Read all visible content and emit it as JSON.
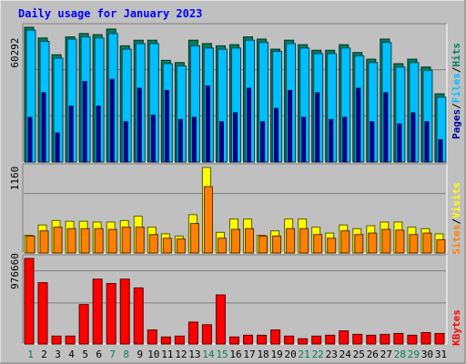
{
  "chart_data": [
    {
      "type": "bar",
      "panel": "hits-files-pages",
      "title": "Daily usage for January 2023",
      "ylabel_max": "60292",
      "ymax": 60292,
      "categories": [
        "1",
        "2",
        "3",
        "4",
        "5",
        "6",
        "7",
        "8",
        "9",
        "10",
        "11",
        "12",
        "13",
        "14",
        "15",
        "16",
        "17",
        "18",
        "19",
        "20",
        "21",
        "22",
        "23",
        "24",
        "25",
        "26",
        "27",
        "28",
        "29",
        "30",
        "31"
      ],
      "weekend_days": [
        "1",
        "7",
        "8",
        "14",
        "15",
        "21",
        "22",
        "28",
        "29"
      ],
      "side_label": [
        "Pages",
        "/",
        "Files",
        "/",
        "Hits"
      ],
      "series": [
        {
          "name": "Hits",
          "color": "#00805c",
          "values": [
            60292,
            55500,
            48000,
            56000,
            57500,
            57000,
            59500,
            52000,
            54500,
            54500,
            45500,
            44500,
            54500,
            53000,
            52000,
            52500,
            56000,
            55000,
            50500,
            54500,
            52500,
            50000,
            50000,
            52500,
            49000,
            46000,
            55000,
            44000,
            46000,
            42500,
            30500
          ]
        },
        {
          "name": "Files",
          "color": "#00bfff",
          "values": [
            59000,
            54000,
            46500,
            55000,
            56000,
            55500,
            57500,
            50500,
            53000,
            53000,
            44000,
            43000,
            52000,
            51000,
            50500,
            51000,
            54500,
            53500,
            49500,
            53000,
            51000,
            48500,
            48500,
            51000,
            47500,
            44500,
            53500,
            42500,
            44500,
            41000,
            29000
          ]
        },
        {
          "name": "Pages",
          "color": "#0000a0",
          "values": [
            20000,
            31000,
            13000,
            25000,
            36000,
            25000,
            37000,
            18000,
            33000,
            21000,
            32000,
            19000,
            20000,
            34000,
            18000,
            22000,
            33000,
            18000,
            24000,
            32000,
            20000,
            31000,
            19000,
            20000,
            33000,
            18000,
            31000,
            17000,
            22000,
            18000,
            10000
          ]
        }
      ]
    },
    {
      "type": "bar",
      "panel": "visits-sites",
      "ylabel_max": "1160",
      "ymax": 1160,
      "categories": [
        "1",
        "2",
        "3",
        "4",
        "5",
        "6",
        "7",
        "8",
        "9",
        "10",
        "11",
        "12",
        "13",
        "14",
        "15",
        "16",
        "17",
        "18",
        "19",
        "20",
        "21",
        "22",
        "23",
        "24",
        "25",
        "26",
        "27",
        "28",
        "29",
        "30",
        "31"
      ],
      "side_label": [
        "Sites",
        "/",
        "Visits"
      ],
      "series": [
        {
          "name": "Visits",
          "color": "#ffff00",
          "values": [
            240,
            380,
            440,
            430,
            430,
            420,
            420,
            440,
            500,
            350,
            260,
            230,
            520,
            1160,
            280,
            460,
            460,
            240,
            300,
            460,
            460,
            350,
            270,
            380,
            330,
            370,
            420,
            420,
            350,
            330,
            260
          ]
        },
        {
          "name": "Sites",
          "color": "#ff8000",
          "values": [
            230,
            300,
            350,
            330,
            330,
            330,
            320,
            350,
            350,
            250,
            200,
            190,
            400,
            900,
            200,
            320,
            330,
            230,
            230,
            330,
            330,
            250,
            200,
            300,
            250,
            270,
            320,
            310,
            250,
            270,
            180
          ]
        }
      ]
    },
    {
      "type": "bar",
      "panel": "kbytes",
      "ylabel_max": "976660",
      "ymax": 976660,
      "categories": [
        "1",
        "2",
        "3",
        "4",
        "5",
        "6",
        "7",
        "8",
        "9",
        "10",
        "11",
        "12",
        "13",
        "14",
        "15",
        "16",
        "17",
        "18",
        "19",
        "20",
        "21",
        "22",
        "23",
        "24",
        "25",
        "26",
        "27",
        "28",
        "29",
        "30",
        "31"
      ],
      "side_label": [
        "KBytes"
      ],
      "series": [
        {
          "name": "KBytes",
          "color": "#ff0000",
          "values": [
            976660,
            700000,
            90000,
            90000,
            450000,
            740000,
            690000,
            740000,
            640000,
            160000,
            80000,
            90000,
            250000,
            220000,
            560000,
            80000,
            100000,
            100000,
            160000,
            90000,
            60000,
            90000,
            100000,
            150000,
            110000,
            100000,
            110000,
            120000,
            100000,
            130000,
            120000
          ]
        }
      ]
    }
  ]
}
